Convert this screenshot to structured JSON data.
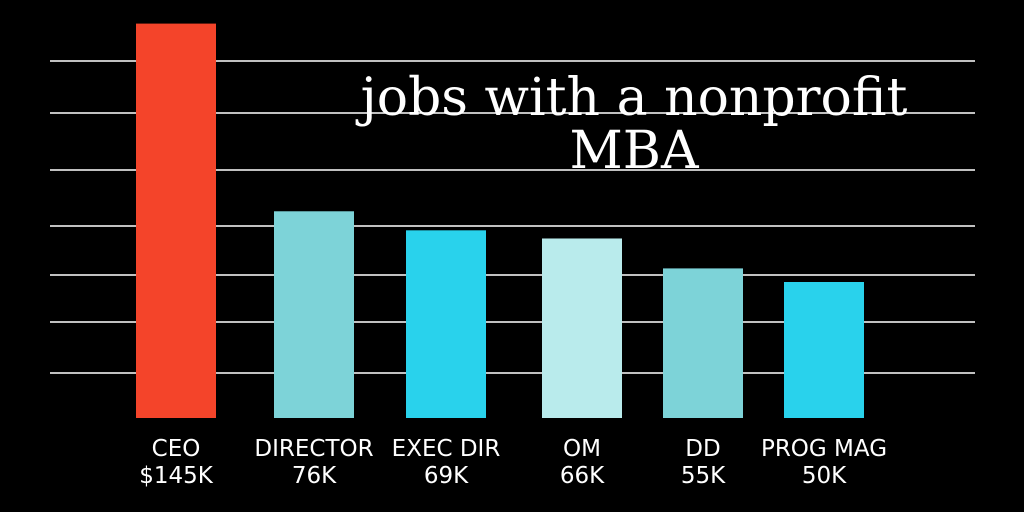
{
  "chart_data": {
    "type": "bar",
    "title": [
      "jobs with a nonprofit",
      "MBA"
    ],
    "categories": [
      "CEO",
      "DIRECTOR",
      "EXEC DIR",
      "OM",
      "DD",
      "PROG MAG"
    ],
    "value_labels": [
      "$145K",
      "76K",
      "69K",
      "66K",
      "55K",
      "50K"
    ],
    "values": [
      145,
      76,
      69,
      66,
      55,
      50
    ],
    "bar_colors": [
      "#f4442a",
      "#7dd3d8",
      "#29d2ec",
      "#b9ebec",
      "#7dd3d8",
      "#29d2ec"
    ],
    "xlabel": "",
    "ylabel": "",
    "ylim": [
      0,
      150
    ],
    "grid": true,
    "grid_color": "#ffffff",
    "background": "#000000"
  }
}
